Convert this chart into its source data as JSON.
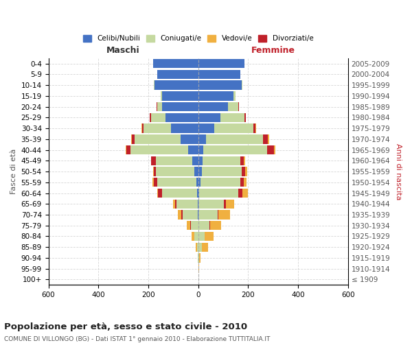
{
  "age_groups": [
    "100+",
    "95-99",
    "90-94",
    "85-89",
    "80-84",
    "75-79",
    "70-74",
    "65-69",
    "60-64",
    "55-59",
    "50-54",
    "45-49",
    "40-44",
    "35-39",
    "30-34",
    "25-29",
    "20-24",
    "15-19",
    "10-14",
    "5-9",
    "0-4"
  ],
  "birth_years": [
    "≤ 1909",
    "1910-1914",
    "1915-1919",
    "1920-1924",
    "1925-1929",
    "1930-1934",
    "1935-1939",
    "1940-1944",
    "1945-1949",
    "1950-1954",
    "1955-1959",
    "1960-1964",
    "1965-1969",
    "1970-1974",
    "1975-1979",
    "1980-1984",
    "1985-1989",
    "1990-1994",
    "1995-1999",
    "2000-2004",
    "2005-2009"
  ],
  "male": {
    "celibe": [
      0,
      0,
      0,
      0,
      0,
      0,
      2,
      2,
      5,
      8,
      15,
      25,
      40,
      70,
      110,
      130,
      145,
      145,
      175,
      165,
      180
    ],
    "coniugato": [
      0,
      0,
      1,
      5,
      15,
      30,
      60,
      85,
      140,
      155,
      155,
      145,
      230,
      185,
      110,
      60,
      20,
      5,
      2,
      0,
      0
    ],
    "vedovo": [
      0,
      0,
      1,
      5,
      10,
      15,
      15,
      10,
      5,
      5,
      3,
      2,
      2,
      2,
      2,
      2,
      1,
      0,
      0,
      0,
      0
    ],
    "divorziato": [
      0,
      0,
      0,
      0,
      1,
      2,
      5,
      5,
      15,
      15,
      8,
      18,
      18,
      12,
      5,
      3,
      2,
      0,
      0,
      0,
      0
    ]
  },
  "female": {
    "nubile": [
      0,
      0,
      0,
      0,
      0,
      0,
      2,
      2,
      5,
      8,
      15,
      18,
      20,
      30,
      65,
      90,
      120,
      140,
      175,
      170,
      185
    ],
    "coniugata": [
      0,
      2,
      3,
      15,
      25,
      45,
      75,
      100,
      155,
      160,
      160,
      150,
      255,
      230,
      155,
      95,
      40,
      10,
      2,
      0,
      0
    ],
    "vedova": [
      0,
      2,
      5,
      25,
      35,
      45,
      45,
      35,
      20,
      10,
      8,
      5,
      5,
      4,
      3,
      2,
      1,
      0,
      0,
      0,
      0
    ],
    "divorziata": [
      0,
      0,
      0,
      0,
      1,
      2,
      5,
      8,
      18,
      15,
      12,
      15,
      30,
      20,
      10,
      5,
      2,
      0,
      0,
      0,
      0
    ]
  },
  "colors": {
    "celibe": "#4472c4",
    "coniugato": "#c5d9a0",
    "vedovo": "#f0b040",
    "divorziato": "#c0202a"
  },
  "legend_labels": [
    "Celibi/Nubili",
    "Coniugati/e",
    "Vedovi/e",
    "Divorziati/e"
  ],
  "title": "Popolazione per età, sesso e stato civile - 2010",
  "subtitle": "COMUNE DI VILLONGO (BG) - Dati ISTAT 1° gennaio 2010 - Elaborazione TUTTITALIA.IT",
  "ylabel_left": "Fasce di età",
  "ylabel_right": "Anni di nascita",
  "xlabel_male": "Maschi",
  "xlabel_female": "Femmine",
  "xlim": 600,
  "bg_color": "#ffffff",
  "grid_color": "#cccccc"
}
